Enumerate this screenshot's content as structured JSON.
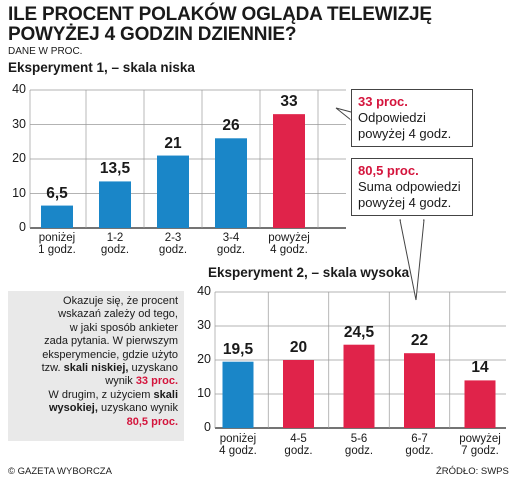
{
  "header": {
    "title_line1": "ILE PROCENT POLAKÓW OGLĄDA TELEWIZJĘ",
    "title_line2": "POWYŻEJ 4 GODZIN DZIENNIE?",
    "subtitle": "DANE W PROC."
  },
  "chart_data": [
    {
      "type": "bar",
      "title": "Eksperyment 1, – skala niska",
      "categories": [
        "poniżej\n1 godz.",
        "1-2\ngodz.",
        "2-3\ngodz.",
        "3-4\ngodz.",
        "powyżej\n4 godz."
      ],
      "values": [
        6.5,
        13.5,
        21,
        26,
        33
      ],
      "value_labels": [
        "6,5",
        "13,5",
        "21",
        "26",
        "33"
      ],
      "bar_colors": [
        "#1a86c8",
        "#1a86c8",
        "#1a86c8",
        "#1a86c8",
        "#e0234a"
      ],
      "ylim": [
        0,
        40
      ],
      "yticks": [
        0,
        10,
        20,
        30,
        40
      ],
      "grid": true
    },
    {
      "type": "bar",
      "title": "Eksperyment 2, – skala wysoka",
      "categories": [
        "poniżej\n4 godz.",
        "4-5\ngodz.",
        "5-6\ngodz.",
        "6-7\ngodz.",
        "powyżej\n7 godz."
      ],
      "values": [
        19.5,
        20,
        24.5,
        22,
        14
      ],
      "value_labels": [
        "19,5",
        "20",
        "24,5",
        "22",
        "14"
      ],
      "bar_colors": [
        "#1a86c8",
        "#e0234a",
        "#e0234a",
        "#e0234a",
        "#e0234a"
      ],
      "ylim": [
        0,
        40
      ],
      "yticks": [
        0,
        10,
        20,
        30,
        40
      ],
      "grid": true
    }
  ],
  "callouts": {
    "c1_value": "33 proc.",
    "c1_line1": "Odpowiedzi",
    "c1_line2": "powyżej 4 godz.",
    "c2_value": "80,5 proc.",
    "c2_line1": "Suma odpowiedzi",
    "c2_line2": "powyżej 4 godz."
  },
  "note": {
    "l1": "Okazuje się, że procent",
    "l2": "wskazań zależy od tego,",
    "l3": "w jaki sposób ankieter",
    "l4": "zada pytania. W pierwszym",
    "l5": "eksperymencie, gdzie użyto",
    "l6a": "tzw. ",
    "l6b": "skali niskiej,",
    "l6c": " uzyskano",
    "l7a": "wynik ",
    "l7b": "33 proc.",
    "l8a": "W drugim, z użyciem ",
    "l8b": "skali",
    "l9a": "wysokiej,",
    "l9b": " uzyskano wynik",
    "l10": "80,5 proc."
  },
  "footer": {
    "left": "© GAZETA WYBORCZA",
    "right": "ŹRÓDŁO: SWPS"
  },
  "colors": {
    "blue": "#1a86c8",
    "red": "#e0234a",
    "accent_text": "#d4143c",
    "note_bg": "#e9e9e9"
  }
}
